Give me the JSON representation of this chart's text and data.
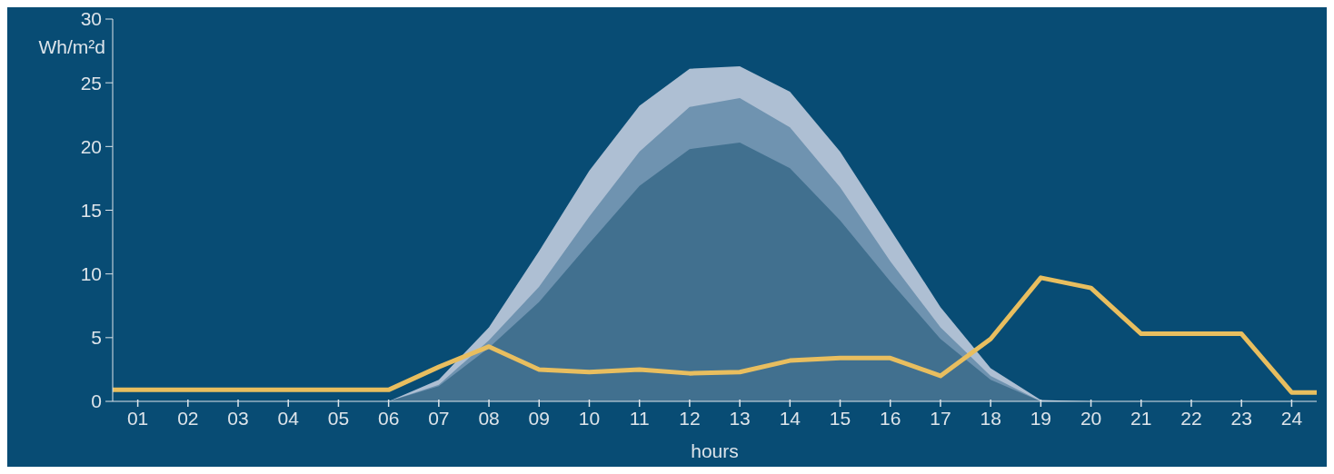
{
  "chart_data": {
    "type": "area",
    "ylabel": "Wh/m²d",
    "xlabel": "hours",
    "xlim": [
      0.5,
      24.5
    ],
    "xticks": [
      {
        "value": 1,
        "label": "01"
      },
      {
        "value": 2,
        "label": "02"
      },
      {
        "value": 3,
        "label": "03"
      },
      {
        "value": 4,
        "label": "04"
      },
      {
        "value": 5,
        "label": "05"
      },
      {
        "value": 6,
        "label": "06"
      },
      {
        "value": 7,
        "label": "07"
      },
      {
        "value": 8,
        "label": "08"
      },
      {
        "value": 9,
        "label": "09"
      },
      {
        "value": 10,
        "label": "10"
      },
      {
        "value": 11,
        "label": "11"
      },
      {
        "value": 12,
        "label": "12"
      },
      {
        "value": 13,
        "label": "13"
      },
      {
        "value": 14,
        "label": "14"
      },
      {
        "value": 15,
        "label": "15"
      },
      {
        "value": 16,
        "label": "16"
      },
      {
        "value": 17,
        "label": "17"
      },
      {
        "value": 18,
        "label": "18"
      },
      {
        "value": 19,
        "label": "19"
      },
      {
        "value": 20,
        "label": "20"
      },
      {
        "value": 21,
        "label": "21"
      },
      {
        "value": 22,
        "label": "22"
      },
      {
        "value": 23,
        "label": "23"
      },
      {
        "value": 24,
        "label": "24"
      }
    ],
    "ylim": [
      0,
      30
    ],
    "yticks": [
      0,
      5,
      10,
      15,
      20,
      25,
      30
    ],
    "marker": "none",
    "series": [
      {
        "color": "#aebfd3",
        "x": [
          6,
          7,
          8,
          9,
          10,
          11,
          12,
          13,
          14,
          15,
          16,
          17,
          18,
          19,
          20
        ],
        "values": [
          0,
          1.7,
          5.8,
          11.8,
          18.1,
          23.2,
          26.1,
          26.3,
          24.3,
          19.6,
          13.5,
          7.4,
          2.6,
          0.1,
          0
        ]
      },
      {
        "color": "#6f93b0",
        "x": [
          6,
          7,
          8,
          9,
          10,
          11,
          12,
          13,
          14,
          15,
          16,
          17,
          18,
          19
        ],
        "values": [
          0,
          1.3,
          4.8,
          9,
          14.5,
          19.6,
          23.1,
          23.8,
          21.5,
          16.8,
          11,
          5.8,
          2,
          0
        ]
      },
      {
        "color": "#41708f",
        "x": [
          6,
          7,
          8,
          9,
          10,
          11,
          12,
          13,
          14,
          15,
          16,
          17,
          18,
          19
        ],
        "values": [
          0,
          1.2,
          4.2,
          7.8,
          12.4,
          16.9,
          19.8,
          20.3,
          18.3,
          14.2,
          9.4,
          4.9,
          1.7,
          0
        ]
      },
      {
        "type": "line",
        "color": "#e8be5f",
        "line_style": "solid",
        "x": [
          0.5,
          1,
          2,
          3,
          4,
          5,
          6,
          7,
          8,
          9,
          10,
          11,
          12,
          13,
          14,
          15,
          16,
          17,
          18,
          19,
          20,
          21,
          22,
          23,
          24,
          24.5
        ],
        "values": [
          0.9,
          0.9,
          0.9,
          0.9,
          0.9,
          0.9,
          0.9,
          2.7,
          4.3,
          2.5,
          2.3,
          2.5,
          2.2,
          2.3,
          3.2,
          3.4,
          3.4,
          2,
          4.9,
          9.7,
          8.9,
          5.3,
          5.3,
          5.3,
          0.7,
          0.7
        ]
      }
    ]
  }
}
